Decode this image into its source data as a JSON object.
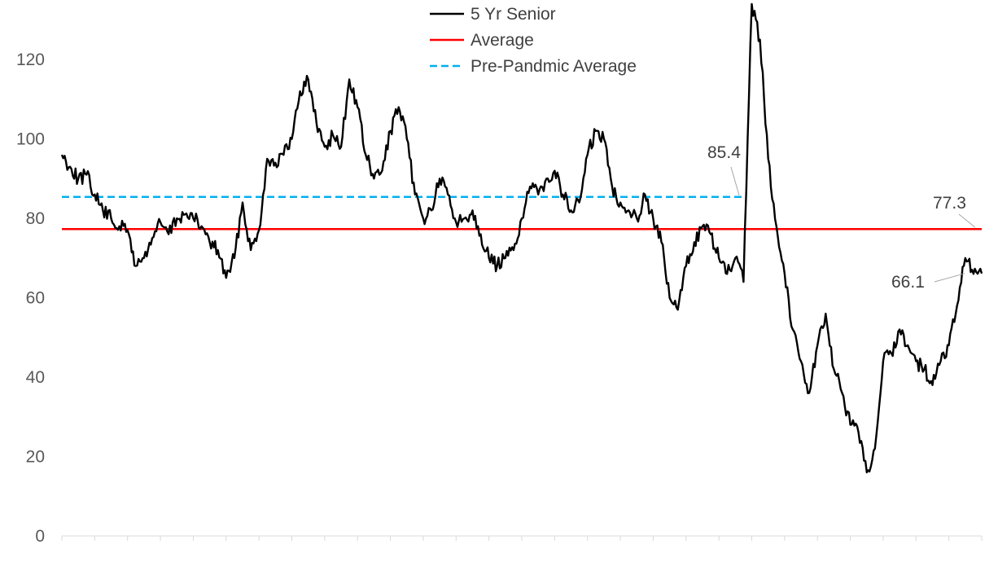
{
  "chart_data": {
    "type": "line",
    "title": "",
    "xlabel": "",
    "ylabel": "",
    "ylim": [
      0,
      135
    ],
    "yticks": [
      0,
      20,
      40,
      60,
      80,
      100,
      120
    ],
    "grid": false,
    "legend_position": "top-center",
    "x_tick_count": 29,
    "series": [
      {
        "name": "5 Yr Senior",
        "color": "#000000",
        "style": "solid",
        "values": [
          96,
          93,
          90,
          91,
          86,
          82,
          80,
          78,
          77,
          68,
          70,
          75,
          79,
          76,
          80,
          81,
          80,
          78,
          74,
          72,
          65,
          70,
          84,
          72,
          77,
          95,
          94,
          96,
          100,
          112,
          115,
          104,
          98,
          101,
          98,
          115,
          108,
          96,
          90,
          92,
          102,
          108,
          100,
          86,
          80,
          82,
          90,
          86,
          79,
          80,
          82,
          76,
          70,
          68,
          70,
          72,
          80,
          88,
          86,
          90,
          92,
          86,
          82,
          84,
          96,
          102,
          100,
          88,
          84,
          82,
          80,
          86,
          80,
          74,
          60,
          57,
          68,
          74,
          78,
          76,
          70,
          66,
          70,
          64,
          134,
          125,
          95,
          78,
          66,
          52,
          44,
          36,
          48,
          56,
          42,
          36,
          28,
          26,
          16,
          22,
          44,
          46,
          52,
          48,
          44,
          42,
          38,
          44,
          48,
          58,
          70,
          66,
          66.1
        ]
      },
      {
        "name": "Average",
        "color": "#ff0000",
        "style": "solid",
        "value": 77.3
      },
      {
        "name": "Pre-Pandmic Average",
        "color": "#00b0f0",
        "style": "dashed",
        "value": 85.4,
        "end_fraction": 0.74
      }
    ],
    "annotations": [
      {
        "label": "85.4",
        "value": 85.4
      },
      {
        "label": "77.3",
        "value": 77.3
      },
      {
        "label": "66.1",
        "value": 66.1
      }
    ]
  }
}
